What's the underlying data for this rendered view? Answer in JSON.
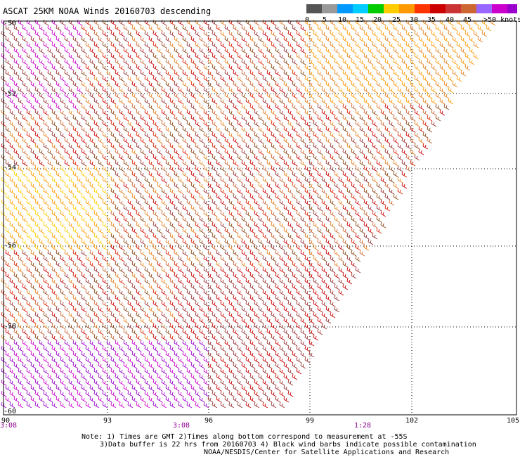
{
  "title": "ASCAT 25KM NOAA Winds 20160703 descending",
  "legend": {
    "colors": [
      "#555555",
      "#999999",
      "#0099ff",
      "#00ccff",
      "#00cc00",
      "#ffcc00",
      "#ff9900",
      "#ff3300",
      "#cc0000",
      "#cc3333",
      "#cc6633",
      "#9966ff",
      "#cc00cc",
      "#9900cc"
    ],
    "labels": [
      "0",
      "5",
      "10",
      "15",
      "20",
      "25",
      "30",
      "35",
      "40",
      "45",
      ">50 knots"
    ]
  },
  "axes": {
    "lon_ticks": [
      "90",
      "93",
      "96",
      "99",
      "102",
      "105"
    ],
    "lat_ticks": [
      "-50",
      "-52",
      "-54",
      "-56",
      "-58",
      "-60"
    ],
    "time_labels": [
      "3:08",
      "3:08",
      "1:28"
    ]
  },
  "notes": [
    "Note: 1) Times are GMT 2)Times along bottom correspond to measurement at -55S",
    "3)Data buffer is 22 hrs from 20160703 4) Black wind barbs indicate possible contamination",
    "NOAA/NESDIS/Center for Satellite Applications and Research"
  ]
}
